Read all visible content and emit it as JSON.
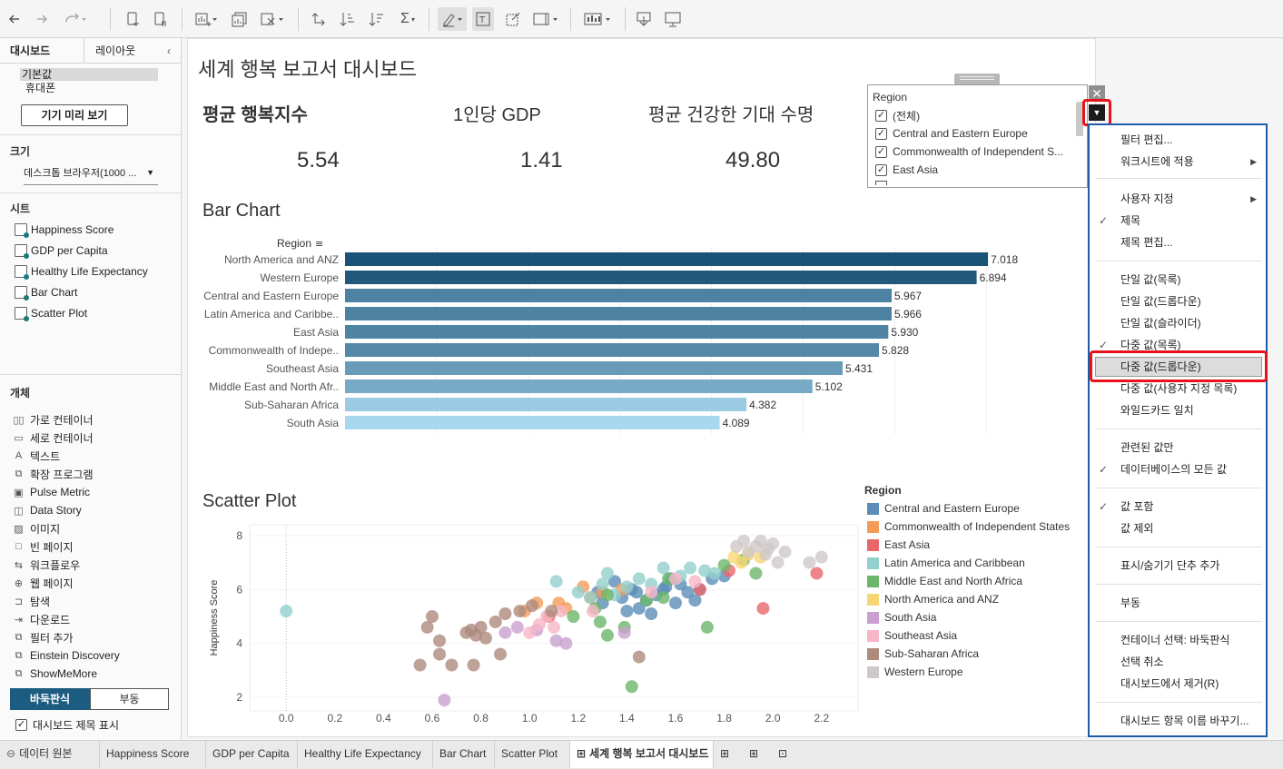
{
  "left_panel": {
    "tabs": [
      "대시보드",
      "레이아웃"
    ],
    "device_options": [
      "기본값",
      "휴대폰"
    ],
    "preview_button": "기기 미리 보기",
    "size_label": "크기",
    "size_value": "데스크톱 브라우저(1000 ...",
    "sheets_label": "시트",
    "sheets": [
      "Happiness Score",
      "GDP per Capita",
      "Healthy Life Expectancy",
      "Bar Chart",
      "Scatter Plot"
    ],
    "objects_label": "개체",
    "objects": [
      "가로 컨테이너",
      "세로 컨테이너",
      "텍스트",
      "확장 프로그램",
      "Pulse Metric",
      "Data Story",
      "이미지",
      "빈 페이지",
      "워크플로우",
      "웹 페이지",
      "탐색",
      "다운로드",
      "필터 추가",
      "Einstein Discovery",
      "ShowMeMore"
    ],
    "layout_toggle": [
      "바둑판식",
      "부동"
    ],
    "show_title_label": "대시보드 제목 표시"
  },
  "dashboard": {
    "title": "세계 행복 보고서 대시보드",
    "kpis": [
      {
        "label": "평균 행복지수",
        "value": "5.54"
      },
      {
        "label": "1인당 GDP",
        "value": "1.41"
      },
      {
        "label": "평균 건강한 기대 수명",
        "value": "49.80"
      }
    ],
    "bar_title": "Bar Chart",
    "scatter_title": "Scatter Plot"
  },
  "filter": {
    "title": "Region",
    "items": [
      "(전체)",
      "Central and Eastern Europe",
      "Commonwealth of Independent S...",
      "East Asia"
    ]
  },
  "menu": {
    "items": [
      {
        "label": "필터 편집..."
      },
      {
        "label": "워크시트에 적용",
        "submenu": true
      },
      {
        "label": "사용자 지정",
        "submenu": true
      },
      {
        "label": "제목",
        "checked": true
      },
      {
        "label": "제목 편집..."
      },
      {
        "label": "단일 값(목록)"
      },
      {
        "label": "단일 값(드롭다운)"
      },
      {
        "label": "단일 값(슬라이더)"
      },
      {
        "label": "다중 값(목록)",
        "checked": true
      },
      {
        "label": "다중 값(드롭다운)",
        "highlighted": true
      },
      {
        "label": "다중 값(사용자 지정 목록)"
      },
      {
        "label": "와일드카드 일치"
      },
      {
        "label": "관련된 값만"
      },
      {
        "label": "데이터베이스의 모든 값",
        "checked": true
      },
      {
        "label": "값 포함",
        "checked": true
      },
      {
        "label": "값 제외"
      },
      {
        "label": "표시/숨기기 단추 추가"
      },
      {
        "label": "부동"
      },
      {
        "label": "컨테이너 선택: 바둑판식"
      },
      {
        "label": "선택 취소"
      },
      {
        "label": "대시보드에서 제거(R)"
      },
      {
        "label": "대시보드 항목 이름 바꾸기..."
      }
    ]
  },
  "bottom_tabs": [
    "데이터 원본",
    "Happiness Score",
    "GDP per Capita",
    "Healthy Life Expectancy",
    "Bar Chart",
    "Scatter Plot",
    "세계 행복 보고서 대시보드"
  ],
  "colors": {
    "accent_blue": "#1e5ca8",
    "highlight_red": "#e8121b",
    "bar_dark": "#1b5277",
    "bar_light": "#a8d8ee"
  },
  "chart_data": [
    {
      "type": "bar",
      "orientation": "horizontal",
      "ylabel": "Region",
      "categories": [
        "North America and ANZ",
        "Western Europe",
        "Central and Eastern Europe",
        "Latin America and Caribbe..",
        "East Asia",
        "Commonwealth of Indepe..",
        "Southeast Asia",
        "Middle East and North Afr..",
        "Sub-Saharan Africa",
        "South Asia"
      ],
      "values": [
        7.018,
        6.894,
        5.967,
        5.966,
        5.93,
        5.828,
        5.431,
        5.102,
        4.382,
        4.089
      ],
      "value_labels": [
        "7.018",
        "6.894",
        "5.967",
        "5.966",
        "5.930",
        "5.828",
        "5.431",
        "5.102",
        "4.382",
        "4.089"
      ],
      "xlim": [
        0,
        7.8
      ],
      "color_scale": [
        "#1b5277",
        "#a8d8ee"
      ]
    },
    {
      "type": "scatter",
      "ylabel": "Happiness Score",
      "xlim": [
        -0.15,
        2.35
      ],
      "ylim": [
        1.5,
        8.4
      ],
      "x_ticks": [
        "0.0",
        "0.2",
        "0.4",
        "0.6",
        "0.8",
        "1.0",
        "1.2",
        "1.4",
        "1.6",
        "1.8",
        "2.0",
        "2.2"
      ],
      "y_ticks": [
        "2",
        "4",
        "6",
        "8"
      ],
      "legend_title": "Region",
      "legend_position": "right",
      "series": [
        {
          "name": "Central and Eastern Europe",
          "color": "#5b8db8",
          "points": [
            [
              1.35,
              6.3
            ],
            [
              1.42,
              6.0
            ],
            [
              1.48,
              5.6
            ],
            [
              1.52,
              5.8
            ],
            [
              1.55,
              6.0
            ],
            [
              1.45,
              5.3
            ],
            [
              1.6,
              5.5
            ],
            [
              1.65,
              5.9
            ],
            [
              1.7,
              6.0
            ],
            [
              1.38,
              5.7
            ],
            [
              1.3,
              5.5
            ],
            [
              1.62,
              6.2
            ],
            [
              1.5,
              5.1
            ],
            [
              1.58,
              6.4
            ],
            [
              1.75,
              6.4
            ],
            [
              1.28,
              5.9
            ],
            [
              1.44,
              5.9
            ],
            [
              1.68,
              5.6
            ],
            [
              1.56,
              6.1
            ],
            [
              1.8,
              6.5
            ],
            [
              1.4,
              5.2
            ]
          ]
        },
        {
          "name": "Commonwealth of Independent States",
          "color": "#f39c5a",
          "points": [
            [
              0.98,
              5.2
            ],
            [
              1.03,
              5.5
            ],
            [
              1.15,
              5.3
            ],
            [
              1.25,
              5.7
            ],
            [
              1.3,
              5.9
            ],
            [
              1.22,
              6.1
            ],
            [
              1.12,
              5.5
            ],
            [
              1.38,
              6.0
            ]
          ]
        },
        {
          "name": "East Asia",
          "color": "#e8676b",
          "points": [
            [
              1.96,
              5.3
            ],
            [
              2.18,
              6.6
            ],
            [
              1.7,
              6.0
            ],
            [
              1.82,
              6.7
            ],
            [
              1.08,
              5.0
            ]
          ]
        },
        {
          "name": "Latin America and Caribbean",
          "color": "#93cfcd",
          "points": [
            [
              0.0,
              5.2
            ],
            [
              1.11,
              6.3
            ],
            [
              1.3,
              6.2
            ],
            [
              1.4,
              6.1
            ],
            [
              1.62,
              6.5
            ],
            [
              1.66,
              6.8
            ],
            [
              1.72,
              6.7
            ],
            [
              1.76,
              6.6
            ],
            [
              1.5,
              6.2
            ],
            [
              1.25,
              5.7
            ],
            [
              1.35,
              5.8
            ],
            [
              1.55,
              6.8
            ],
            [
              1.45,
              6.4
            ],
            [
              1.2,
              5.9
            ],
            [
              1.32,
              6.6
            ]
          ]
        },
        {
          "name": "Middle East and North Africa",
          "color": "#6cb66c",
          "points": [
            [
              1.42,
              2.4
            ],
            [
              1.32,
              5.8
            ],
            [
              1.48,
              5.6
            ],
            [
              1.55,
              5.7
            ],
            [
              1.73,
              4.6
            ],
            [
              1.8,
              6.9
            ],
            [
              1.88,
              7.1
            ],
            [
              1.93,
              6.6
            ],
            [
              1.32,
              4.3
            ],
            [
              1.29,
              4.8
            ],
            [
              1.18,
              5.0
            ],
            [
              1.27,
              5.3
            ],
            [
              1.39,
              4.6
            ],
            [
              1.57,
              6.4
            ]
          ]
        },
        {
          "name": "North America and ANZ",
          "color": "#f7d774",
          "points": [
            [
              1.84,
              7.2
            ],
            [
              1.87,
              7.0
            ],
            [
              1.9,
              7.3
            ],
            [
              1.95,
              7.2
            ]
          ]
        },
        {
          "name": "South Asia",
          "color": "#c9a0cf",
          "points": [
            [
              0.65,
              1.9
            ],
            [
              0.9,
              4.4
            ],
            [
              1.03,
              4.5
            ],
            [
              1.11,
              4.1
            ],
            [
              1.15,
              4.0
            ],
            [
              1.39,
              4.4
            ],
            [
              0.95,
              4.6
            ]
          ]
        },
        {
          "name": "Southeast Asia",
          "color": "#f7b6c5",
          "points": [
            [
              1.0,
              4.4
            ],
            [
              1.1,
              4.6
            ],
            [
              1.13,
              5.2
            ],
            [
              1.26,
              5.2
            ],
            [
              1.6,
              6.4
            ],
            [
              1.68,
              6.3
            ],
            [
              1.04,
              4.7
            ],
            [
              1.07,
              5.0
            ],
            [
              1.5,
              5.9
            ]
          ]
        },
        {
          "name": "Sub-Saharan Africa",
          "color": "#ae8a7d",
          "points": [
            [
              0.55,
              3.2
            ],
            [
              0.58,
              4.6
            ],
            [
              0.6,
              5.0
            ],
            [
              0.63,
              3.6
            ],
            [
              0.68,
              3.2
            ],
            [
              0.74,
              4.4
            ],
            [
              0.77,
              3.2
            ],
            [
              0.8,
              4.6
            ],
            [
              0.82,
              4.2
            ],
            [
              0.88,
              3.6
            ],
            [
              0.9,
              5.1
            ],
            [
              0.96,
              5.2
            ],
            [
              0.78,
              4.3
            ],
            [
              0.86,
              4.8
            ],
            [
              1.01,
              5.4
            ],
            [
              1.09,
              5.2
            ],
            [
              1.45,
              3.5
            ],
            [
              0.63,
              4.1
            ],
            [
              0.76,
              4.5
            ]
          ]
        },
        {
          "name": "Western Europe",
          "color": "#cfc8c8",
          "points": [
            [
              1.88,
              7.8
            ],
            [
              1.93,
              7.6
            ],
            [
              1.98,
              7.5
            ],
            [
              2.05,
              7.4
            ],
            [
              2.15,
              7.0
            ],
            [
              2.2,
              7.2
            ],
            [
              1.85,
              7.6
            ],
            [
              1.95,
              7.8
            ],
            [
              2.02,
              7.0
            ],
            [
              1.9,
              7.4
            ],
            [
              1.97,
              7.3
            ],
            [
              2.0,
              7.7
            ]
          ]
        }
      ]
    }
  ]
}
